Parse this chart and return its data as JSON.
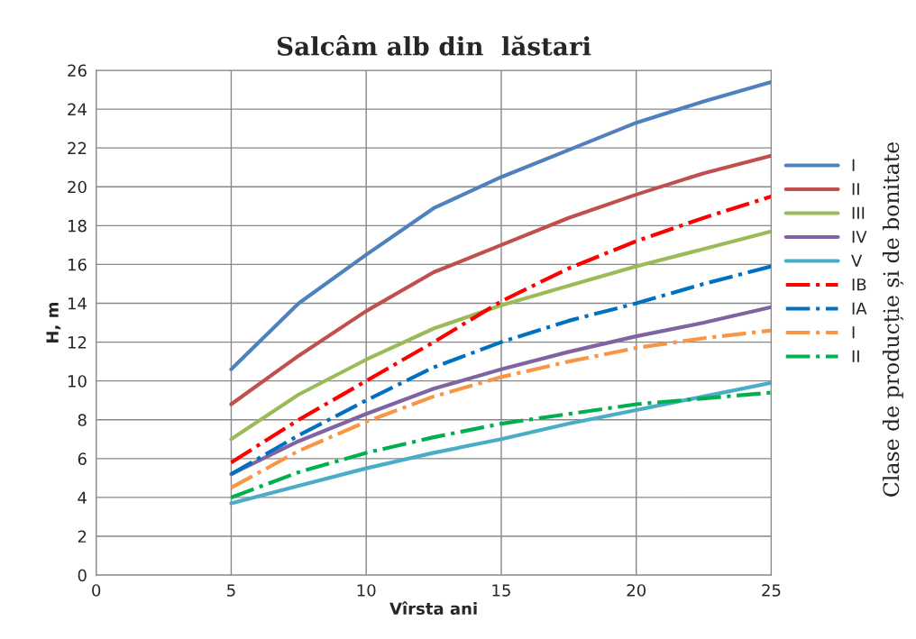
{
  "chart_data": {
    "type": "line",
    "title": "Salcâm alb din  lăstari",
    "xlabel": "Vîrsta ani",
    "ylabel": "H, m",
    "legend_title": "Clase de producție și de bonitate",
    "x": [
      5,
      7.5,
      10,
      12.5,
      15,
      17.5,
      20,
      22.5,
      25
    ],
    "xlim": [
      0,
      25
    ],
    "xticks": [
      0,
      5,
      10,
      15,
      20,
      25
    ],
    "ylim": [
      0,
      26
    ],
    "yticks": [
      0,
      2,
      4,
      6,
      8,
      10,
      12,
      14,
      16,
      18,
      20,
      22,
      24,
      26
    ],
    "grid": true,
    "legend": "right",
    "marker": "none",
    "series": [
      {
        "name": "I",
        "color": "#4f81bd",
        "line_style": "solid",
        "values": [
          10.6,
          14.0,
          16.5,
          18.9,
          20.5,
          21.9,
          23.3,
          24.4,
          25.4
        ]
      },
      {
        "name": "II",
        "color": "#c0504d",
        "line_style": "solid",
        "values": [
          8.8,
          11.3,
          13.6,
          15.6,
          17.0,
          18.4,
          19.6,
          20.7,
          21.6
        ]
      },
      {
        "name": "III",
        "color": "#9bbb59",
        "line_style": "solid",
        "values": [
          7.0,
          9.3,
          11.1,
          12.7,
          13.9,
          14.9,
          15.9,
          16.8,
          17.7
        ]
      },
      {
        "name": "IV",
        "color": "#8064a2",
        "line_style": "solid",
        "values": [
          5.2,
          6.9,
          8.3,
          9.6,
          10.6,
          11.5,
          12.3,
          13.0,
          13.8
        ]
      },
      {
        "name": "V",
        "color": "#4bacc6",
        "line_style": "solid",
        "values": [
          3.7,
          4.6,
          5.5,
          6.3,
          7.0,
          7.8,
          8.5,
          9.2,
          9.9
        ]
      },
      {
        "name": "IB",
        "color": "#ff0000",
        "line_style": "dashdot",
        "values": [
          5.8,
          8.0,
          10.0,
          12.0,
          14.1,
          15.8,
          17.2,
          18.4,
          19.5
        ]
      },
      {
        "name": "IA",
        "color": "#0070c0",
        "line_style": "dashdot",
        "values": [
          5.2,
          7.2,
          9.0,
          10.7,
          12.0,
          13.1,
          14.0,
          15.0,
          15.9
        ]
      },
      {
        "name": "I",
        "color": "#f79646",
        "line_style": "dashdot",
        "values": [
          4.5,
          6.4,
          7.9,
          9.2,
          10.2,
          11.0,
          11.7,
          12.2,
          12.6
        ]
      },
      {
        "name": "II",
        "color": "#00b050",
        "line_style": "dashdot",
        "values": [
          4.0,
          5.3,
          6.3,
          7.1,
          7.8,
          8.3,
          8.8,
          9.1,
          9.4
        ]
      }
    ]
  }
}
